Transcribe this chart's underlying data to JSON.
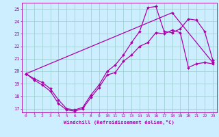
{
  "xlabel": "Windchill (Refroidissement éolien,°C)",
  "bg_color": "#cceeff",
  "line_color": "#aa00aa",
  "grid_color": "#99cccc",
  "xlim": [
    -0.5,
    23.5
  ],
  "ylim": [
    16.7,
    25.5
  ],
  "xticks": [
    0,
    1,
    2,
    3,
    4,
    5,
    6,
    7,
    8,
    9,
    10,
    11,
    12,
    13,
    14,
    15,
    16,
    17,
    18,
    19,
    20,
    21,
    22,
    23
  ],
  "yticks": [
    17,
    18,
    19,
    20,
    21,
    22,
    23,
    24,
    25
  ],
  "line1_x": [
    0,
    1,
    2,
    3,
    4,
    5,
    6,
    7,
    8,
    9,
    10,
    11,
    12,
    13,
    14,
    15,
    16,
    17,
    18,
    19,
    20,
    21,
    22,
    23
  ],
  "line1_y": [
    19.8,
    19.4,
    19.1,
    18.6,
    17.7,
    17.0,
    16.9,
    17.1,
    18.1,
    18.9,
    20.0,
    20.5,
    21.3,
    22.3,
    23.2,
    25.1,
    25.2,
    23.2,
    23.1,
    23.4,
    24.2,
    24.1,
    23.2,
    20.9
  ],
  "line2_x": [
    0,
    1,
    2,
    3,
    4,
    5,
    6,
    7,
    8,
    9,
    10,
    11,
    12,
    13,
    14,
    15,
    16,
    17,
    18,
    19,
    20,
    21,
    22,
    23
  ],
  "line2_y": [
    19.8,
    19.3,
    18.9,
    18.4,
    17.4,
    16.9,
    16.8,
    17.0,
    17.9,
    18.7,
    19.7,
    19.9,
    20.8,
    21.3,
    22.0,
    22.3,
    23.1,
    23.0,
    23.3,
    23.1,
    20.3,
    20.6,
    20.7,
    20.6
  ],
  "line3_x": [
    0,
    18,
    23
  ],
  "line3_y": [
    19.8,
    24.7,
    20.7
  ]
}
